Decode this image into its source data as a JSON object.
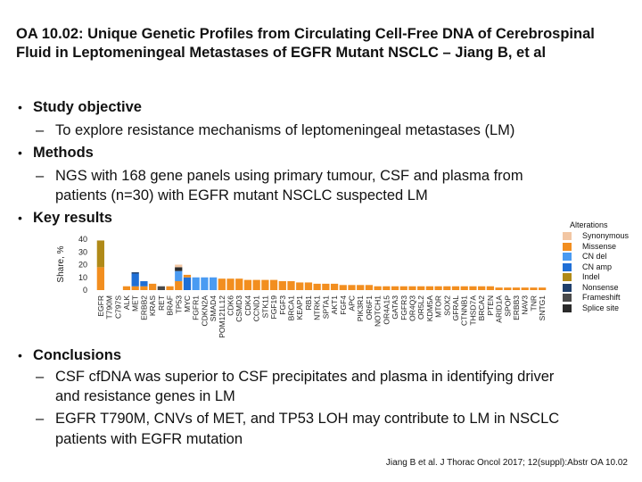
{
  "slide": {
    "title": "OA 10.02: Unique Genetic Profiles from Circulating Cell-Free DNA of Cerebrospinal Fluid in Leptomeningeal Metastases of EGFR Mutant NSCLC – Jiang B, et al",
    "bullets": {
      "study_objective": {
        "heading": "Study objective",
        "sub": "To explore resistance mechanisms of leptomeningeal metastases (LM)"
      },
      "methods": {
        "heading": "Methods",
        "sub_line1": "NGS with 168 gene panels using primary tumour, CSF and plasma from",
        "sub_line2": "patients (n=30) with EGFR mutant NSCLC suspected LM"
      },
      "key_results": {
        "heading": "Key results"
      },
      "conclusions": {
        "heading": "Conclusions",
        "sub1_line1": "CSF cfDNA was superior to CSF precipitates and plasma in identifying driver",
        "sub1_line2": "and resistance genes in LM",
        "sub2_line1": "EGFR T790M, CNVs of MET, and TP53 LOH may contribute to LM in NSCLC",
        "sub2_line2": "patients with EGFR mutation"
      }
    },
    "bullet_glyph": "•",
    "dash_glyph": "–",
    "reference": "Jiang B et al. J Thorac Oncol 2017; 12(suppl):Abstr OA 10.02"
  },
  "chart_data": {
    "type": "bar",
    "stacked": true,
    "ylabel": "Share, %",
    "ylim": [
      0,
      40
    ],
    "yticks": [
      0,
      10,
      20,
      30,
      40
    ],
    "legend_title": "Alterations",
    "legend_position": "right",
    "series": [
      {
        "name": "Synonymous",
        "color": "#f2c6a3"
      },
      {
        "name": "Missense",
        "color": "#f28e1f"
      },
      {
        "name": "CN del",
        "color": "#4a9bf2"
      },
      {
        "name": "CN amp",
        "color": "#1f6fd6"
      },
      {
        "name": "Indel",
        "color": "#b08a18"
      },
      {
        "name": "Nonsense",
        "color": "#1f3f6b"
      },
      {
        "name": "Frameshift",
        "color": "#4a4a4a"
      },
      {
        "name": "Splice site",
        "color": "#2a2a2a"
      }
    ],
    "categories": [
      {
        "label": "EGFR",
        "stack": [
          {
            "s": 1,
            "v": 18
          },
          {
            "s": 4,
            "v": 21
          }
        ]
      },
      {
        "label": "T790M",
        "stack": []
      },
      {
        "label": "C797S",
        "stack": []
      },
      {
        "label": "ALK",
        "stack": [
          {
            "s": 1,
            "v": 3
          }
        ]
      },
      {
        "label": "MET",
        "stack": [
          {
            "s": 1,
            "v": 3
          },
          {
            "s": 3,
            "v": 10
          },
          {
            "s": 5,
            "v": 1
          }
        ]
      },
      {
        "label": "ERBB2",
        "stack": [
          {
            "s": 1,
            "v": 3
          },
          {
            "s": 3,
            "v": 4
          }
        ]
      },
      {
        "label": "KRAS",
        "stack": [
          {
            "s": 1,
            "v": 5
          }
        ]
      },
      {
        "label": "RET",
        "stack": [
          {
            "s": 6,
            "v": 3
          }
        ]
      },
      {
        "label": "BRAF",
        "stack": [
          {
            "s": 1,
            "v": 3
          }
        ]
      },
      {
        "label": "TP53",
        "stack": [
          {
            "s": 1,
            "v": 7
          },
          {
            "s": 2,
            "v": 8
          },
          {
            "s": 7,
            "v": 3
          },
          {
            "s": 0,
            "v": 2
          }
        ]
      },
      {
        "label": "MYC",
        "stack": [
          {
            "s": 3,
            "v": 10
          },
          {
            "s": 1,
            "v": 2
          }
        ]
      },
      {
        "label": "FGFR1",
        "stack": [
          {
            "s": 2,
            "v": 10
          }
        ]
      },
      {
        "label": "CDKN2A",
        "stack": [
          {
            "s": 2,
            "v": 10
          }
        ]
      },
      {
        "label": "SMAD4",
        "stack": [
          {
            "s": 2,
            "v": 10
          }
        ]
      },
      {
        "label": "POM121L12",
        "stack": [
          {
            "s": 1,
            "v": 9
          }
        ]
      },
      {
        "label": "CDK6",
        "stack": [
          {
            "s": 1,
            "v": 9
          }
        ]
      },
      {
        "label": "CSMD3",
        "stack": [
          {
            "s": 1,
            "v": 9
          }
        ]
      },
      {
        "label": "CDK4",
        "stack": [
          {
            "s": 1,
            "v": 8
          }
        ]
      },
      {
        "label": "CCND1",
        "stack": [
          {
            "s": 1,
            "v": 8
          }
        ]
      },
      {
        "label": "STK11",
        "stack": [
          {
            "s": 1,
            "v": 8
          }
        ]
      },
      {
        "label": "FGF19",
        "stack": [
          {
            "s": 1,
            "v": 8
          }
        ]
      },
      {
        "label": "FGF3",
        "stack": [
          {
            "s": 1,
            "v": 7
          }
        ]
      },
      {
        "label": "BRCA1",
        "stack": [
          {
            "s": 1,
            "v": 7
          }
        ]
      },
      {
        "label": "KEAP1",
        "stack": [
          {
            "s": 1,
            "v": 6
          }
        ]
      },
      {
        "label": "RB1",
        "stack": [
          {
            "s": 1,
            "v": 6
          }
        ]
      },
      {
        "label": "NTRK1",
        "stack": [
          {
            "s": 1,
            "v": 5
          }
        ]
      },
      {
        "label": "SPTA1",
        "stack": [
          {
            "s": 1,
            "v": 5
          }
        ]
      },
      {
        "label": "AKT1",
        "stack": [
          {
            "s": 1,
            "v": 5
          }
        ]
      },
      {
        "label": "FGF4",
        "stack": [
          {
            "s": 1,
            "v": 4
          }
        ]
      },
      {
        "label": "APC",
        "stack": [
          {
            "s": 1,
            "v": 4
          }
        ]
      },
      {
        "label": "PIK3R1",
        "stack": [
          {
            "s": 1,
            "v": 4
          }
        ]
      },
      {
        "label": "OR6F1",
        "stack": [
          {
            "s": 1,
            "v": 4
          }
        ]
      },
      {
        "label": "NOTCH1",
        "stack": [
          {
            "s": 1,
            "v": 3
          }
        ]
      },
      {
        "label": "OR4A15",
        "stack": [
          {
            "s": 1,
            "v": 3
          }
        ]
      },
      {
        "label": "GATA3",
        "stack": [
          {
            "s": 1,
            "v": 3
          }
        ]
      },
      {
        "label": "FGFR3",
        "stack": [
          {
            "s": 1,
            "v": 3
          }
        ]
      },
      {
        "label": "OR4Q3",
        "stack": [
          {
            "s": 1,
            "v": 3
          }
        ]
      },
      {
        "label": "OR5L2",
        "stack": [
          {
            "s": 1,
            "v": 3
          }
        ]
      },
      {
        "label": "KDM5A",
        "stack": [
          {
            "s": 1,
            "v": 3
          }
        ]
      },
      {
        "label": "MTOR",
        "stack": [
          {
            "s": 1,
            "v": 3
          }
        ]
      },
      {
        "label": "SOX2",
        "stack": [
          {
            "s": 1,
            "v": 3
          }
        ]
      },
      {
        "label": "GFRAL",
        "stack": [
          {
            "s": 1,
            "v": 3
          }
        ]
      },
      {
        "label": "CTNNB1",
        "stack": [
          {
            "s": 1,
            "v": 3
          }
        ]
      },
      {
        "label": "THSD7A",
        "stack": [
          {
            "s": 1,
            "v": 3
          }
        ]
      },
      {
        "label": "BRCA2",
        "stack": [
          {
            "s": 1,
            "v": 3
          }
        ]
      },
      {
        "label": "PTEN",
        "stack": [
          {
            "s": 1,
            "v": 3
          }
        ]
      },
      {
        "label": "ARID1A",
        "stack": [
          {
            "s": 1,
            "v": 2
          }
        ]
      },
      {
        "label": "SPOP",
        "stack": [
          {
            "s": 1,
            "v": 2
          }
        ]
      },
      {
        "label": "ERBB3",
        "stack": [
          {
            "s": 1,
            "v": 2
          }
        ]
      },
      {
        "label": "NAV3",
        "stack": [
          {
            "s": 1,
            "v": 2
          }
        ]
      },
      {
        "label": "TNR",
        "stack": [
          {
            "s": 1,
            "v": 2
          }
        ]
      },
      {
        "label": "SNTG1",
        "stack": [
          {
            "s": 1,
            "v": 2
          }
        ]
      }
    ]
  }
}
